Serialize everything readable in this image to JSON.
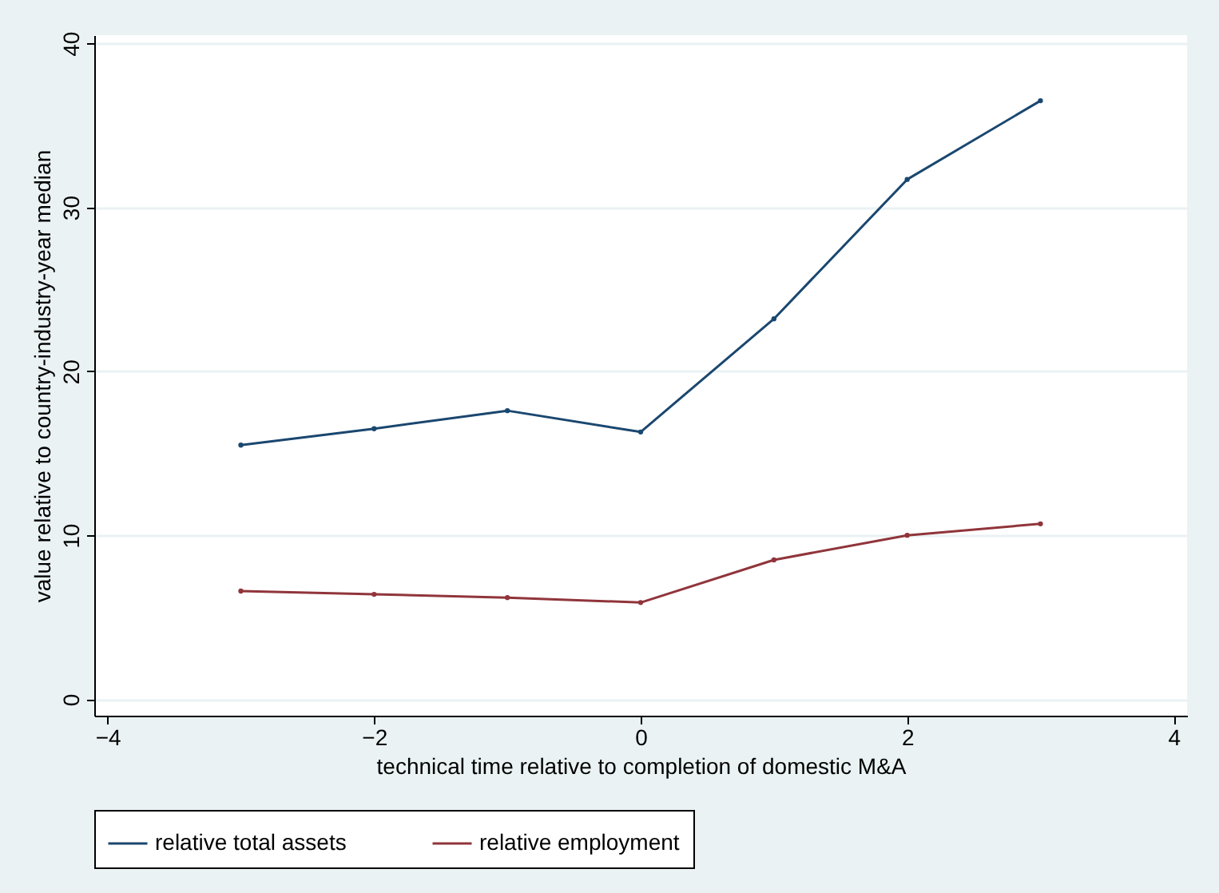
{
  "chart_data": {
    "type": "line",
    "xlabel": "technical time relative to completion of domestic M&A",
    "ylabel": "value relative to country-industry-year median",
    "x": [
      -3,
      -2,
      -1,
      0,
      1,
      2,
      3
    ],
    "series": [
      {
        "name": "relative total assets",
        "color": "#1a476f",
        "values": [
          15.5,
          16.5,
          17.6,
          16.3,
          23.2,
          31.7,
          36.5
        ]
      },
      {
        "name": "relative employment",
        "color": "#90353b",
        "values": [
          6.6,
          6.4,
          6.2,
          5.9,
          8.5,
          10.0,
          10.7
        ]
      }
    ],
    "xlim": [
      -4.1,
      4.1
    ],
    "xticks": [
      -4,
      -2,
      0,
      2,
      4
    ],
    "ylim": [
      -1,
      40.5
    ],
    "yticks": [
      0,
      10,
      20,
      30,
      40
    ],
    "grid": "y",
    "legend": "bottom",
    "marker": "circle",
    "line_style": "solid"
  }
}
